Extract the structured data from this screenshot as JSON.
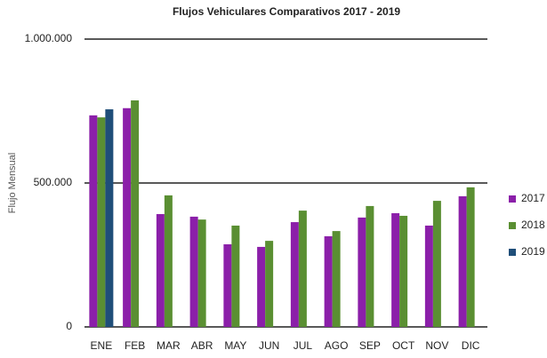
{
  "chart_data": {
    "type": "bar",
    "title": "Flujos Vehiculares Comparativos 2017 - 2019",
    "y_label": "Flujo Mensual",
    "categories": [
      "ENE",
      "FEB",
      "MAR",
      "ABR",
      "MAY",
      "JUN",
      "JUL",
      "AGO",
      "SEP",
      "OCT",
      "NOV",
      "DIC"
    ],
    "series": [
      {
        "name": "2017",
        "color": "#8b1fa9",
        "values": [
          735000,
          760000,
          392000,
          383000,
          287000,
          278000,
          364000,
          315000,
          380000,
          395000,
          352000,
          454000
        ]
      },
      {
        "name": "2018",
        "color": "#5a8f32",
        "values": [
          728000,
          787000,
          457000,
          373000,
          352000,
          299000,
          404000,
          333000,
          420000,
          386000,
          438000,
          485000
        ]
      },
      {
        "name": "2019",
        "color": "#1f4e79",
        "values": [
          756000,
          null,
          null,
          null,
          null,
          null,
          null,
          null,
          null,
          null,
          null,
          null
        ]
      }
    ],
    "ylim": [
      0,
      1000000
    ],
    "yticks": [
      {
        "value": 0,
        "label": "0"
      },
      {
        "value": 500000,
        "label": "500.000"
      },
      {
        "value": 1000000,
        "label": "1.000.000"
      }
    ],
    "grid": true,
    "legend": "right"
  }
}
